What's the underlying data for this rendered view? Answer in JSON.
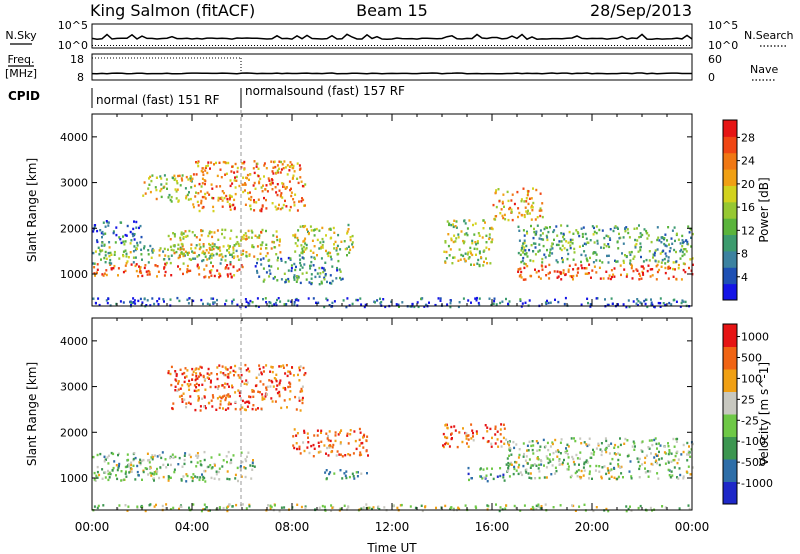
{
  "header": {
    "station": "King Salmon (fitACF)",
    "beam": "Beam 15",
    "date": "28/Sep/2013"
  },
  "top_panels": {
    "nsky_label": "N.Sky",
    "nsky_ticks": [
      "10^5",
      "10^0"
    ],
    "nsearch_label": "N.Search",
    "nsearch_ticks": [
      "10^5",
      "10^0"
    ],
    "freq_label_1": "Freq.",
    "freq_label_2": "[MHz]",
    "freq_ticks": [
      "18",
      "8"
    ],
    "nave_label": "Nave",
    "nave_ticks": [
      "60",
      "0"
    ],
    "cpid_label": "CPID",
    "cpid_modes": [
      "normal (fast) 151 RF",
      "normalsound (fast) 157 RF"
    ]
  },
  "chart_data": [
    {
      "type": "heatmap",
      "parameter": "Power",
      "ylabel": "Slant Range [km]",
      "xlabel": "Time UT",
      "ylim": [
        300,
        4500
      ],
      "yticks": [
        "1000",
        "2000",
        "3000",
        "4000"
      ],
      "xticks": [
        "00:00",
        "04:00",
        "08:00",
        "12:00",
        "16:00",
        "20:00",
        "00:00"
      ],
      "colorbar": {
        "label": "Power [dB]",
        "ticks": [
          "4",
          "8",
          "12",
          "16",
          "20",
          "24",
          "28"
        ],
        "colors": [
          "#1414e6",
          "#1e50b4",
          "#3c82a0",
          "#3c9b6e",
          "#5ab43c",
          "#96c832",
          "#d2d21e",
          "#f0a014",
          "#f07814",
          "#f04614",
          "#e61414"
        ]
      },
      "scatter_regions": [
        {
          "t0": 0.0,
          "t1": 6.0,
          "r0": 950,
          "r1": 1250,
          "level": 0.85
        },
        {
          "t0": 0.0,
          "t1": 6.0,
          "r0": 1250,
          "r1": 1700,
          "level": 0.45
        },
        {
          "t0": 0.0,
          "t1": 2.0,
          "r0": 1700,
          "r1": 2200,
          "level": 0.2
        },
        {
          "t0": 3.0,
          "t1": 7.5,
          "r0": 1400,
          "r1": 2000,
          "level": 0.6
        },
        {
          "t0": 4.0,
          "t1": 8.5,
          "r0": 2400,
          "r1": 3500,
          "level": 0.75
        },
        {
          "t0": 2.0,
          "t1": 4.0,
          "r0": 2600,
          "r1": 3200,
          "level": 0.55
        },
        {
          "t0": 6.5,
          "t1": 10.0,
          "r0": 800,
          "r1": 1400,
          "level": 0.3
        },
        {
          "t0": 8.0,
          "t1": 10.5,
          "r0": 1400,
          "r1": 2100,
          "level": 0.5
        },
        {
          "t0": 14.0,
          "t1": 16.0,
          "r0": 1200,
          "r1": 2200,
          "level": 0.5
        },
        {
          "t0": 16.0,
          "t1": 18.0,
          "r0": 2200,
          "r1": 2900,
          "level": 0.7
        },
        {
          "t0": 17.0,
          "t1": 24.0,
          "r0": 900,
          "r1": 1250,
          "level": 0.85
        },
        {
          "t0": 17.0,
          "t1": 24.0,
          "r0": 1250,
          "r1": 2100,
          "level": 0.35
        },
        {
          "t0": 0.0,
          "t1": 24.0,
          "r0": 300,
          "r1": 500,
          "level": 0.15
        }
      ]
    },
    {
      "type": "heatmap",
      "parameter": "Velocity",
      "ylabel": "Slant Range [km]",
      "xlabel": "Time UT",
      "ylim": [
        300,
        4500
      ],
      "yticks": [
        "1000",
        "2000",
        "3000",
        "4000"
      ],
      "xticks": [
        "00:00",
        "04:00",
        "08:00",
        "12:00",
        "16:00",
        "20:00",
        "00:00"
      ],
      "colorbar": {
        "label": "Velocity [m s^-1]",
        "ticks": [
          "1000",
          "500",
          "100",
          "25",
          "-25",
          "-100",
          "-500",
          "-1000"
        ],
        "colors": [
          "#1e28c8",
          "#2e6ea8",
          "#3c9650",
          "#6ec846",
          "#c8c8c0",
          "#f0a014",
          "#f06414",
          "#e61414"
        ]
      },
      "scatter_regions": [
        {
          "t0": 0.0,
          "t1": 6.5,
          "r0": 950,
          "r1": 1600,
          "level": 0.45
        },
        {
          "t0": 3.0,
          "t1": 8.5,
          "r0": 2500,
          "r1": 3500,
          "level": 0.8
        },
        {
          "t0": 8.0,
          "t1": 11.0,
          "r0": 1500,
          "r1": 2100,
          "level": 0.8
        },
        {
          "t0": 9.0,
          "t1": 11.0,
          "r0": 1000,
          "r1": 1200,
          "level": 0.3
        },
        {
          "t0": 14.0,
          "t1": 16.5,
          "r0": 1700,
          "r1": 2200,
          "level": 0.8
        },
        {
          "t0": 15.0,
          "t1": 16.5,
          "r0": 950,
          "r1": 1250,
          "level": 0.3
        },
        {
          "t0": 16.5,
          "t1": 24.0,
          "r0": 1000,
          "r1": 1900,
          "level": 0.45
        },
        {
          "t0": 0.0,
          "t1": 24.0,
          "r0": 300,
          "r1": 450,
          "level": 0.5
        }
      ]
    }
  ]
}
